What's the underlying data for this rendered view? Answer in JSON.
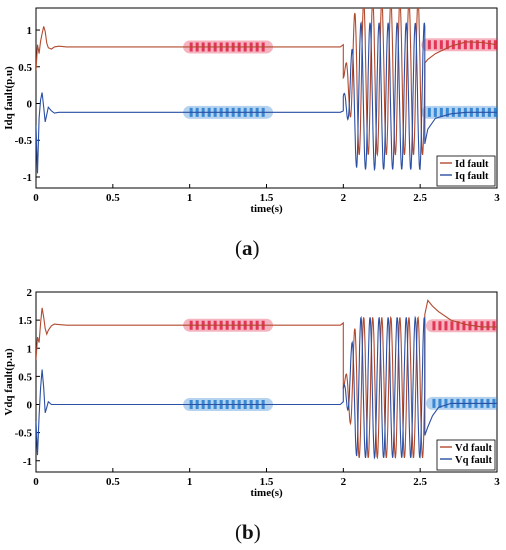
{
  "colors": {
    "d_series": "#b24a2e",
    "q_series": "#2b4fa3",
    "d_band": "#e0284a",
    "q_band": "#2a7fd0",
    "q_band_top": "#6fe3f0",
    "axis": "#000000",
    "grid": "#ffffff"
  },
  "chart_data": [
    {
      "id": "a",
      "type": "line",
      "caption_open": "(",
      "caption_letter": "a",
      "caption_close": ")",
      "xlabel": "time(s)",
      "ylabel": "Idq fault(p.u)",
      "xlim": [
        0,
        3
      ],
      "ylim": [
        -1.15,
        1.3
      ],
      "xticks": [
        0,
        0.5,
        1,
        1.5,
        2,
        2.5,
        3
      ],
      "xtick_labels": [
        "0",
        "0.5",
        "1",
        "1.5",
        "2",
        "2.5",
        "3"
      ],
      "yticks": [
        -1,
        -0.5,
        0,
        0.5,
        1
      ],
      "ytick_labels": [
        "-1",
        "-0.5",
        "0",
        "0.5",
        "1"
      ],
      "legend_position": "bottom-right",
      "series": [
        {
          "name": "Id fault",
          "x": [
            0,
            0.01,
            0.02,
            0.03,
            0.04,
            0.05,
            0.06,
            0.07,
            0.08,
            0.1,
            0.12,
            0.15,
            0.2,
            0.3,
            0.5,
            0.8,
            1.0,
            1.5,
            1.8,
            1.98,
            2.0
          ],
          "y": [
            0.45,
            0.8,
            0.68,
            0.85,
            0.95,
            1.05,
            0.98,
            0.82,
            0.76,
            0.74,
            0.77,
            0.78,
            0.77,
            0.77,
            0.77,
            0.77,
            0.77,
            0.77,
            0.77,
            0.77,
            0.8
          ]
        },
        {
          "name": "Iq fault",
          "x": [
            0,
            0.01,
            0.02,
            0.03,
            0.04,
            0.05,
            0.06,
            0.07,
            0.08,
            0.1,
            0.12,
            0.15,
            0.2,
            0.3,
            0.5,
            0.8,
            1.0,
            1.5,
            1.8,
            1.98,
            2.0
          ],
          "y": [
            -0.3,
            -0.95,
            -0.2,
            0.05,
            0.15,
            -0.05,
            -0.25,
            -0.15,
            -0.05,
            -0.1,
            -0.13,
            -0.12,
            -0.12,
            -0.12,
            -0.12,
            -0.12,
            -0.12,
            -0.12,
            -0.12,
            -0.12,
            -0.1
          ]
        }
      ],
      "oscillation": {
        "start": 2.0,
        "end": 2.53,
        "cycles": 9,
        "d_amp": 1.05,
        "d_center": 0.35,
        "q_amp": 1.0,
        "q_center": 0.1
      },
      "recovery": {
        "d": {
          "x": [
            2.53,
            2.55,
            2.6,
            2.7,
            2.8,
            2.9,
            3.0
          ],
          "y": [
            0.55,
            0.6,
            0.68,
            0.78,
            0.84,
            0.83,
            0.8
          ]
        },
        "q": {
          "x": [
            2.53,
            2.55,
            2.6,
            2.7,
            2.8,
            2.9,
            3.0
          ],
          "y": [
            -0.55,
            -0.35,
            -0.2,
            -0.14,
            -0.12,
            -0.12,
            -0.12
          ]
        }
      },
      "highlight_bands": [
        {
          "series": "d",
          "x": [
            1.0,
            1.5
          ],
          "level": 0.77
        },
        {
          "series": "q",
          "x": [
            1.0,
            1.5
          ],
          "level": -0.12
        },
        {
          "series": "d",
          "x": [
            2.55,
            3.0
          ],
          "level": 0.8
        },
        {
          "series": "q",
          "x": [
            2.55,
            3.0
          ],
          "level": -0.12
        }
      ]
    },
    {
      "id": "b",
      "type": "line",
      "caption_open": "(",
      "caption_letter": "b",
      "caption_close": ")",
      "xlabel": "time(s)",
      "ylabel": "Vdq fault(p.u)",
      "xlim": [
        0,
        3
      ],
      "ylim": [
        -1.2,
        2.0
      ],
      "xticks": [
        0,
        0.5,
        1,
        1.5,
        2,
        2.5,
        3
      ],
      "xtick_labels": [
        "0",
        "0.5",
        "1",
        "1.5",
        "2",
        "2.5",
        "3"
      ],
      "yticks": [
        -1,
        -0.5,
        0,
        0.5,
        1,
        1.5,
        2
      ],
      "ytick_labels": [
        "-1",
        "-0.5",
        "0",
        "0.5",
        "1",
        "1.5",
        "2"
      ],
      "legend_position": "bottom-right",
      "series": [
        {
          "name": "Vd fault",
          "x": [
            0,
            0.01,
            0.02,
            0.03,
            0.04,
            0.05,
            0.06,
            0.07,
            0.08,
            0.1,
            0.12,
            0.15,
            0.2,
            0.3,
            0.5,
            0.8,
            1.0,
            1.5,
            1.8,
            1.98,
            2.0
          ],
          "y": [
            0.8,
            1.2,
            1.1,
            1.45,
            1.72,
            1.55,
            1.35,
            1.25,
            1.32,
            1.4,
            1.43,
            1.42,
            1.41,
            1.41,
            1.41,
            1.41,
            1.41,
            1.41,
            1.41,
            1.41,
            1.45
          ]
        },
        {
          "name": "Vq fault",
          "x": [
            0,
            0.01,
            0.02,
            0.03,
            0.04,
            0.05,
            0.06,
            0.07,
            0.08,
            0.1,
            0.12,
            0.15,
            0.2,
            0.3,
            0.5,
            0.8,
            1.0,
            1.5,
            1.8,
            1.98,
            2.0
          ],
          "y": [
            -0.3,
            -0.9,
            -0.2,
            0.3,
            0.62,
            0.3,
            -0.15,
            -0.05,
            0.05,
            0.0,
            0.0,
            0.0,
            0.0,
            0.0,
            0.0,
            0.0,
            0.0,
            0.0,
            0.0,
            0.0,
            0.05
          ]
        }
      ],
      "oscillation": {
        "start": 2.0,
        "end": 2.53,
        "cycles": 9,
        "d_amp": 1.25,
        "d_center": 0.3,
        "q_amp": 1.25,
        "q_center": 0.3
      },
      "recovery": {
        "d": {
          "x": [
            2.53,
            2.55,
            2.58,
            2.62,
            2.7,
            2.8,
            2.9,
            3.0
          ],
          "y": [
            1.6,
            1.85,
            1.75,
            1.65,
            1.5,
            1.42,
            1.38,
            1.38
          ]
        },
        "q": {
          "x": [
            2.53,
            2.55,
            2.58,
            2.62,
            2.7,
            2.8,
            2.9,
            3.0
          ],
          "y": [
            -0.55,
            -0.4,
            -0.2,
            -0.05,
            0.02,
            0.02,
            0.02,
            0.02
          ]
        }
      },
      "highlight_bands": [
        {
          "series": "d",
          "x": [
            1.0,
            1.5
          ],
          "level": 1.41
        },
        {
          "series": "q",
          "x": [
            1.0,
            1.5
          ],
          "level": 0.0
        },
        {
          "series": "d",
          "x": [
            2.58,
            3.0
          ],
          "level": 1.4
        },
        {
          "series": "q",
          "x": [
            2.58,
            3.0
          ],
          "level": 0.02
        }
      ]
    }
  ]
}
